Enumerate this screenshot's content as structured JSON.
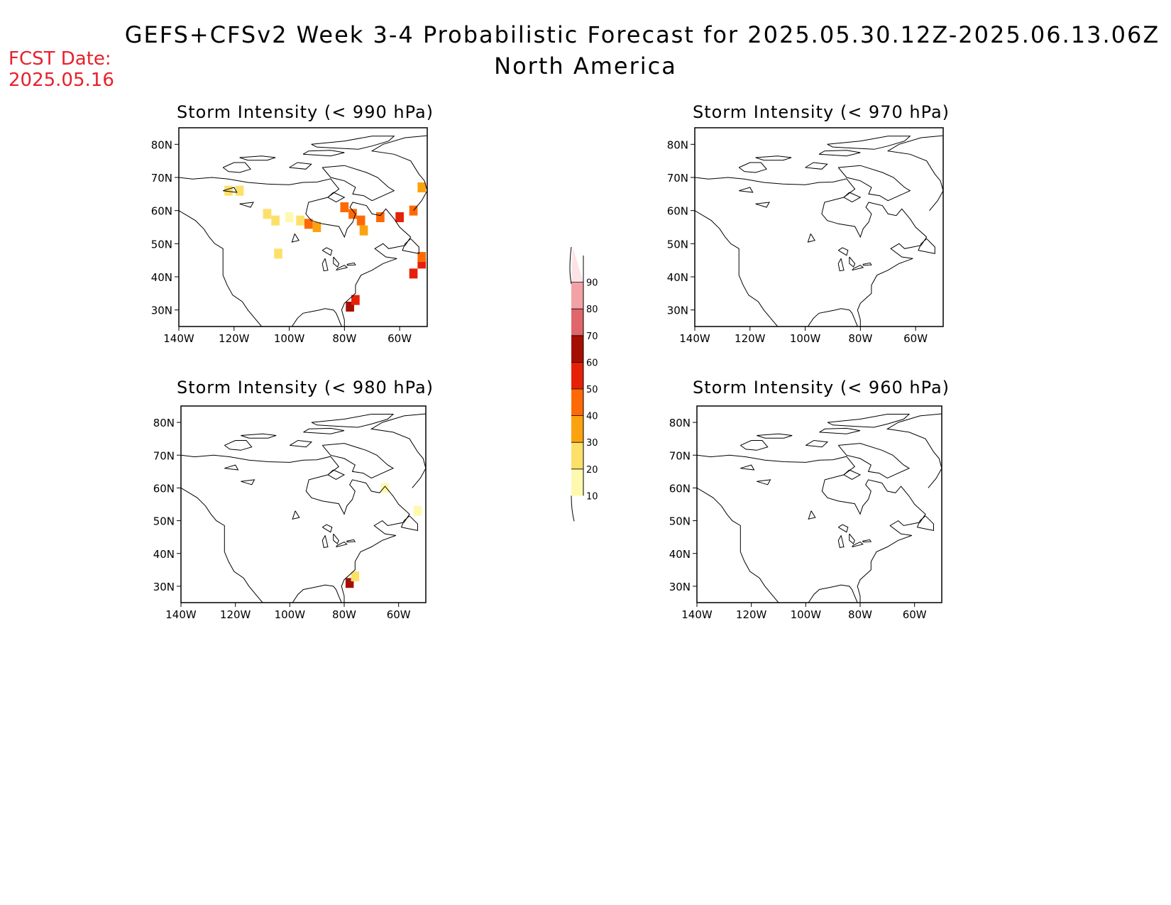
{
  "header": {
    "title": "GEFS+CFSv2 Week 3-4 Probabilistic Forecast for 2025.05.30.12Z-2025.06.13.06Z",
    "subtitle": "North America",
    "fcst_label": "FCST Date:",
    "fcst_date": "2025.05.16"
  },
  "panels": [
    {
      "title": "Storm Intensity (< 990 hPa)"
    },
    {
      "title": "Storm Intensity (< 970 hPa)"
    },
    {
      "title": "Storm Intensity (< 980 hPa)"
    },
    {
      "title": "Storm Intensity (< 960 hPa)"
    }
  ],
  "axes": {
    "lon_ticks": [
      "140W",
      "120W",
      "100W",
      "80W",
      "60W"
    ],
    "lat_ticks": [
      "80N",
      "70N",
      "60N",
      "50N",
      "40N",
      "30N"
    ]
  },
  "colorbar": {
    "labels": [
      "10",
      "20",
      "30",
      "40",
      "50",
      "60",
      "70",
      "80",
      "90"
    ],
    "colors": [
      "#fff9b0",
      "#fde06a",
      "#fba30f",
      "#fd6a05",
      "#e52107",
      "#a50f03",
      "#e0666a",
      "#f2a2a6",
      "#fde3e5"
    ]
  },
  "chart_data": {
    "type": "heatmap",
    "map_extent": {
      "lon": [
        -140,
        -50
      ],
      "lat": [
        25,
        85
      ]
    },
    "probability_percent_bins": [
      10,
      20,
      30,
      40,
      50,
      60,
      70,
      80,
      90
    ],
    "fields": [
      {
        "panel": "Storm Intensity (< 990 hPa)",
        "cells": [
          {
            "lon": -122,
            "lat": 66,
            "bin": 20
          },
          {
            "lon": -118,
            "lat": 66,
            "bin": 20
          },
          {
            "lon": -108,
            "lat": 59,
            "bin": 20
          },
          {
            "lon": -105,
            "lat": 57,
            "bin": 20
          },
          {
            "lon": -100,
            "lat": 58,
            "bin": 10
          },
          {
            "lon": -96,
            "lat": 57,
            "bin": 20
          },
          {
            "lon": -93,
            "lat": 56,
            "bin": 40
          },
          {
            "lon": -90,
            "lat": 55,
            "bin": 30
          },
          {
            "lon": -104,
            "lat": 47,
            "bin": 20
          },
          {
            "lon": -80,
            "lat": 61,
            "bin": 40
          },
          {
            "lon": -77,
            "lat": 59,
            "bin": 40
          },
          {
            "lon": -74,
            "lat": 57,
            "bin": 40
          },
          {
            "lon": -73,
            "lat": 54,
            "bin": 30
          },
          {
            "lon": -67,
            "lat": 58,
            "bin": 40
          },
          {
            "lon": -60,
            "lat": 58,
            "bin": 50
          },
          {
            "lon": -55,
            "lat": 60,
            "bin": 40
          },
          {
            "lon": -52,
            "lat": 67,
            "bin": 30
          },
          {
            "lon": -52,
            "lat": 44,
            "bin": 50
          },
          {
            "lon": -52,
            "lat": 46,
            "bin": 40
          },
          {
            "lon": -55,
            "lat": 41,
            "bin": 50
          },
          {
            "lon": -78,
            "lat": 31,
            "bin": 60
          },
          {
            "lon": -76,
            "lat": 33,
            "bin": 50
          }
        ]
      },
      {
        "panel": "Storm Intensity (< 970 hPa)",
        "cells": []
      },
      {
        "panel": "Storm Intensity (< 980 hPa)",
        "cells": [
          {
            "lon": -78,
            "lat": 31,
            "bin": 60
          },
          {
            "lon": -76,
            "lat": 33,
            "bin": 20
          },
          {
            "lon": -53,
            "lat": 53,
            "bin": 10
          },
          {
            "lon": -65,
            "lat": 60,
            "bin": 10
          }
        ]
      },
      {
        "panel": "Storm Intensity (< 960 hPa)",
        "cells": []
      }
    ]
  }
}
